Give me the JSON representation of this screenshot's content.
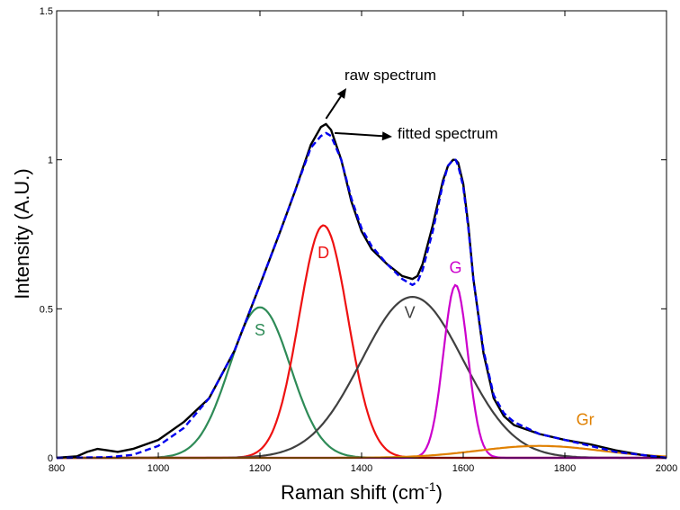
{
  "chart_data": {
    "type": "line",
    "title": "",
    "xlabel": "Raman shift (cm",
    "xlabel_sup": "-1",
    "xlabel_close": ")",
    "ylabel": "Intensity (A.U.)",
    "xlim": [
      800,
      2000
    ],
    "ylim": [
      0,
      1.5
    ],
    "x_ticks": [
      800,
      1000,
      1200,
      1400,
      1600,
      1800,
      2000
    ],
    "x_tick_labels": [
      "800",
      "1000",
      "1200",
      "1400",
      "1600",
      "1800",
      "2000"
    ],
    "y_ticks": [
      0,
      0.5,
      1,
      1.5
    ],
    "y_tick_labels": [
      "0",
      "0.5",
      "1",
      "1.5"
    ],
    "grid": false,
    "annotations": [
      {
        "text": "raw spectrum",
        "points_to": [
          1330,
          1.12
        ]
      },
      {
        "text": "fitted spectrum",
        "points_to": [
          1340,
          1.09
        ]
      }
    ],
    "series": [
      {
        "key": "raw",
        "color": "#000000",
        "dashed": false,
        "x": [
          800,
          840,
          860,
          880,
          900,
          920,
          950,
          1000,
          1050,
          1100,
          1150,
          1200,
          1240,
          1270,
          1300,
          1320,
          1330,
          1340,
          1360,
          1380,
          1400,
          1420,
          1450,
          1480,
          1500,
          1510,
          1520,
          1540,
          1560,
          1570,
          1580,
          1585,
          1590,
          1600,
          1610,
          1620,
          1640,
          1660,
          1680,
          1700,
          1750,
          1800,
          1850,
          1900,
          1950,
          2000
        ],
        "y": [
          0.0,
          0.005,
          0.02,
          0.03,
          0.025,
          0.02,
          0.03,
          0.06,
          0.12,
          0.2,
          0.36,
          0.58,
          0.76,
          0.9,
          1.05,
          1.11,
          1.12,
          1.1,
          1.0,
          0.86,
          0.76,
          0.7,
          0.65,
          0.61,
          0.6,
          0.61,
          0.65,
          0.78,
          0.93,
          0.98,
          1.0,
          1.0,
          0.99,
          0.92,
          0.78,
          0.6,
          0.35,
          0.2,
          0.14,
          0.11,
          0.08,
          0.06,
          0.045,
          0.025,
          0.01,
          0.0
        ]
      },
      {
        "key": "fitted",
        "color": "#0000ee",
        "dashed": true,
        "x": [
          800,
          900,
          950,
          1000,
          1050,
          1100,
          1150,
          1200,
          1240,
          1270,
          1300,
          1320,
          1330,
          1340,
          1360,
          1380,
          1400,
          1420,
          1450,
          1480,
          1500,
          1510,
          1520,
          1540,
          1560,
          1570,
          1580,
          1585,
          1590,
          1600,
          1610,
          1620,
          1640,
          1660,
          1680,
          1700,
          1750,
          1800,
          1850,
          1900,
          1950,
          2000
        ],
        "y": [
          0.0,
          0.002,
          0.01,
          0.04,
          0.1,
          0.2,
          0.36,
          0.58,
          0.76,
          0.9,
          1.04,
          1.08,
          1.09,
          1.08,
          1.0,
          0.87,
          0.77,
          0.71,
          0.65,
          0.6,
          0.58,
          0.59,
          0.63,
          0.76,
          0.92,
          0.98,
          1.0,
          1.0,
          0.98,
          0.91,
          0.77,
          0.6,
          0.36,
          0.21,
          0.15,
          0.12,
          0.08,
          0.06,
          0.04,
          0.02,
          0.01,
          0.0
        ]
      }
    ],
    "peaks": [
      {
        "name": "S",
        "color": "#2e8b57",
        "center": 1200,
        "height": 0.505,
        "sigma": 60,
        "label_pos": [
          1200,
          0.41
        ]
      },
      {
        "name": "D",
        "color": "#ee1111",
        "center": 1325,
        "height": 0.78,
        "sigma": 48,
        "label_pos": [
          1325,
          0.67
        ]
      },
      {
        "name": "V",
        "color": "#404040",
        "center": 1500,
        "height": 0.54,
        "sigma": 100,
        "label_pos": [
          1495,
          0.47
        ]
      },
      {
        "name": "G",
        "color": "#cc00cc",
        "center": 1585,
        "height": 0.58,
        "sigma": 24,
        "label_pos": [
          1585,
          0.62
        ]
      },
      {
        "name": "Gr",
        "color": "#e08000",
        "center": 1750,
        "height": 0.04,
        "sigma": 120,
        "label_pos": [
          1840,
          0.11
        ]
      }
    ]
  }
}
